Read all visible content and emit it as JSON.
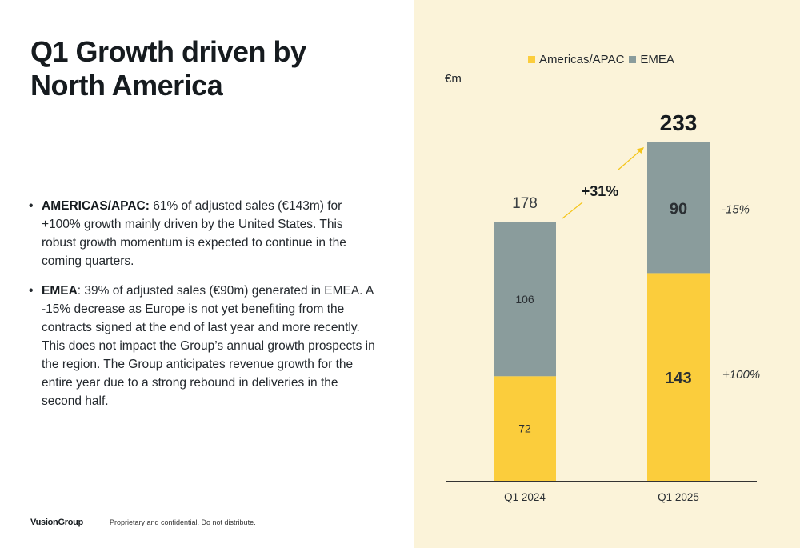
{
  "slide": {
    "title": "Q1 Growth driven by North America",
    "bullets": [
      {
        "head": "AMERICAS/APAC:",
        "text": " 61% of adjusted sales (€143m) for +100% growth mainly driven by the United States. This robust growth momentum is expected to continue in the coming quarters."
      },
      {
        "head": "EMEA",
        "text": ": 39% of adjusted sales (€90m) generated in EMEA. A -15% decrease as Europe is not yet benefiting from the contracts signed at the end of last year and more recently. This does not impact the Group’s annual growth prospects in the region. The Group anticipates revenue growth for the entire year due to a strong rebound in deliveries in the second half."
      }
    ],
    "bullet_glyph": "•",
    "footer": {
      "logo": "VusionGroup",
      "note": "Proprietary and confidential. Do not distribute."
    }
  },
  "colors": {
    "americas": "#fbcd3c",
    "emea": "#8a9c9c",
    "arrow": "#f5c518",
    "right_bg": "#fbf3d9",
    "axis": "#333333",
    "text": "#24292e"
  },
  "chart_data": {
    "type": "bar",
    "stacked": true,
    "unit": "€m",
    "categories": [
      "Q1 2024",
      "Q1 2025"
    ],
    "series": [
      {
        "name": "Americas/APAC",
        "values": [
          72,
          143
        ]
      },
      {
        "name": "EMEA",
        "values": [
          106,
          90
        ]
      }
    ],
    "totals": [
      "178",
      "233"
    ],
    "segment_labels": {
      "Americas/APAC": [
        "72",
        "143"
      ],
      "EMEA": [
        "106",
        "90"
      ]
    },
    "growth_label": "+31%",
    "change_labels": {
      "EMEA": "-15%",
      "Americas/APAC": "+100%"
    },
    "ylim": [
      0,
      233
    ],
    "grid": false,
    "legend": "top-center"
  }
}
